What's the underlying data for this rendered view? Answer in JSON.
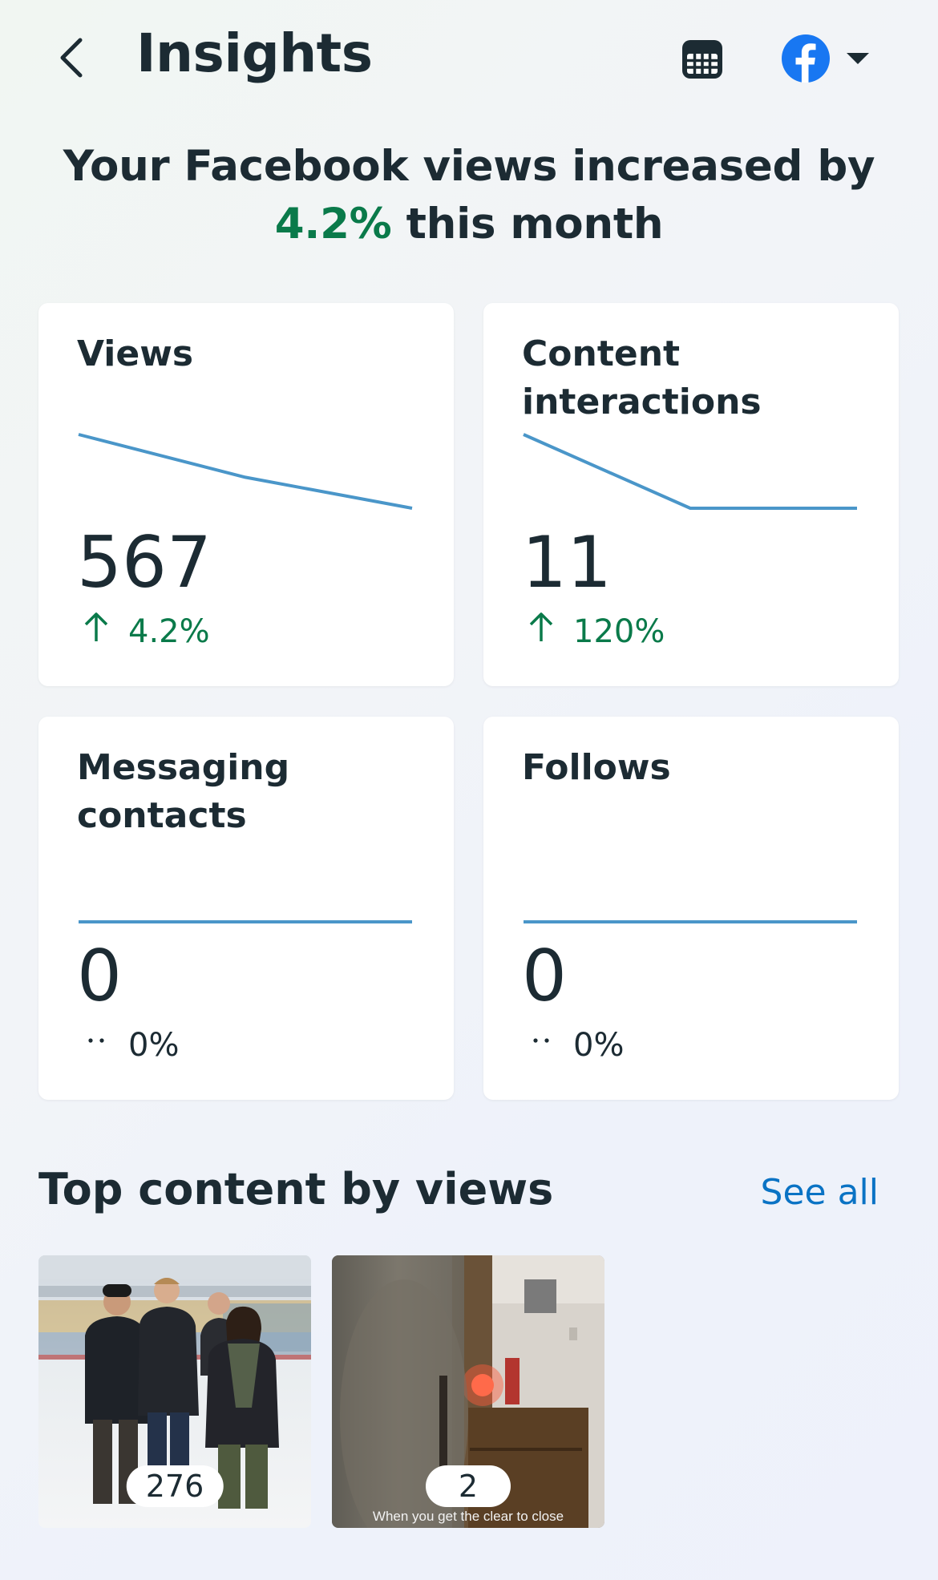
{
  "header": {
    "title": "Insights"
  },
  "headline": {
    "prefix": "Your Facebook views increased by",
    "percent": "4.2%",
    "suffix": "this month"
  },
  "cards": [
    {
      "title": "Views",
      "value": "567",
      "change": "4.2%",
      "trend": "up",
      "sparkline": [
        0.0,
        0.58,
        1.0
      ]
    },
    {
      "title": "Content interactions",
      "value": "11",
      "change": "120%",
      "trend": "up",
      "sparkline": [
        0.0,
        1.0,
        1.0
      ]
    },
    {
      "title": "Messaging contacts",
      "value": "0",
      "change": "0%",
      "trend": "flat",
      "sparkline": [
        0.0,
        0.0,
        0.0
      ]
    },
    {
      "title": "Follows",
      "value": "0",
      "change": "0%",
      "trend": "flat",
      "sparkline": [
        0.0,
        0.0,
        0.0
      ]
    }
  ],
  "top_content": {
    "title": "Top content by views",
    "see_all": "See all",
    "items": [
      {
        "views": "276"
      },
      {
        "views": "2",
        "caption": "When you get the clear to close"
      }
    ]
  },
  "colors": {
    "accent_green": "#0a7a4a",
    "link_blue": "#0a73c4",
    "sparkline_blue": "#4a96c9",
    "facebook_blue": "#1877f2"
  },
  "icons": {
    "back": "chevron-left-icon",
    "calendar": "calendar-icon",
    "facebook": "facebook-logo-icon",
    "dropdown": "caret-down-icon",
    "trend_up": "arrow-up-icon",
    "trend_flat": "dots-icon"
  }
}
